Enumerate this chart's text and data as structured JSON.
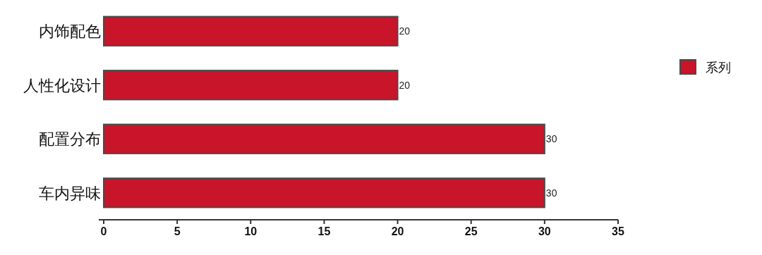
{
  "chart_data": {
    "type": "bar",
    "orientation": "horizontal",
    "categories": [
      "内饰配色",
      "人性化设计",
      "配置分布",
      "车内异味"
    ],
    "series": [
      {
        "name": "系列",
        "color": "#c8152a",
        "values": [
          20,
          20,
          30,
          30
        ]
      }
    ],
    "xlim": [
      0,
      35
    ],
    "xticks": [
      0,
      5,
      10,
      15,
      20,
      25,
      30,
      35
    ],
    "data_labels": true,
    "legend": "right"
  }
}
